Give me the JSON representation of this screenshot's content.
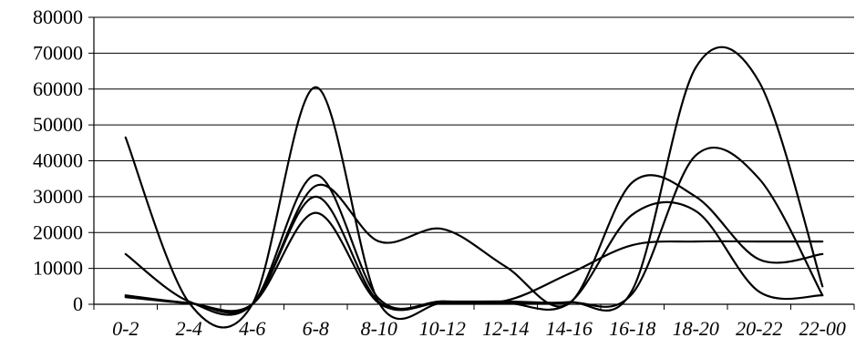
{
  "chart_data": {
    "type": "line",
    "title": "",
    "xlabel": "",
    "ylabel": "",
    "ylim": [
      0,
      80000
    ],
    "yticks": [
      "0",
      "10000",
      "20000",
      "30000",
      "40000",
      "50000",
      "60000",
      "70000",
      "80000"
    ],
    "categories": [
      "0-2",
      "2-4",
      "4-6",
      "6-8",
      "8-10",
      "10-12",
      "12-14",
      "14-16",
      "16-18",
      "18-20",
      "20-22",
      "22-00"
    ],
    "grid": true,
    "legend": "none",
    "series": [
      {
        "values": [
          46500,
          500,
          0,
          60500,
          400,
          300,
          300,
          500,
          3000,
          41500,
          35000,
          2500
        ]
      },
      {
        "values": [
          14000,
          800,
          0,
          36000,
          1500,
          800,
          800,
          600,
          4000,
          66000,
          62000,
          5000
        ]
      },
      {
        "values": [
          2500,
          400,
          0,
          33000,
          17500,
          21000,
          10500,
          200,
          34000,
          30000,
          12500,
          14000
        ]
      },
      {
        "values": [
          2200,
          300,
          0,
          30000,
          600,
          500,
          400,
          300,
          25000,
          26000,
          3500,
          2500
        ]
      },
      {
        "values": [
          2000,
          300,
          0,
          25500,
          300,
          800,
          1000,
          8500,
          16500,
          17500,
          17500,
          17500
        ]
      }
    ]
  }
}
